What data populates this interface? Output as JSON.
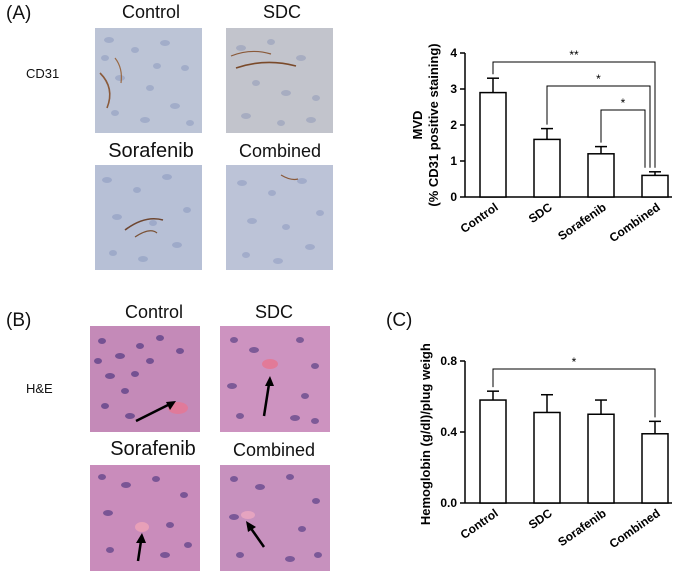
{
  "panels": {
    "a_letter": "(A)",
    "b_letter": "(B)",
    "c_letter": "(C)"
  },
  "a_images": {
    "stain": "CD31",
    "labels": [
      "Control",
      "SDC",
      "Sorafenib",
      "Combined"
    ]
  },
  "b_images": {
    "stain": "H&E",
    "labels": [
      "Control",
      "SDC",
      "Sorafenib",
      "Combined"
    ]
  },
  "colors": {
    "ihc_background": "#b9c2d6",
    "he_background": "#c889bd",
    "axis": "#000000",
    "bar_fill": "#ffffff"
  },
  "chart_data": [
    {
      "id": "chart-a",
      "type": "bar",
      "categories": [
        "Control",
        "SDC",
        "Sorafenib",
        "Combined"
      ],
      "values": [
        2.9,
        1.6,
        1.2,
        0.6
      ],
      "errors": [
        0.4,
        0.3,
        0.2,
        0.1
      ],
      "ylabel_line1": "MVD",
      "ylabel_line2": "(% CD31 positive staining)",
      "ylim": [
        0,
        4
      ],
      "yticks": [
        "0",
        "1",
        "2",
        "3",
        "4"
      ],
      "significance": [
        {
          "from": "Control",
          "to": "Combined",
          "label": "**"
        },
        {
          "from": "SDC",
          "to": "Combined",
          "label": "*"
        },
        {
          "from": "Sorafenib",
          "to": "Combined",
          "label": "*"
        }
      ]
    },
    {
      "id": "chart-c",
      "type": "bar",
      "categories": [
        "Control",
        "SDC",
        "Sorafenib",
        "Combined"
      ],
      "values": [
        0.58,
        0.51,
        0.5,
        0.39
      ],
      "errors": [
        0.05,
        0.1,
        0.08,
        0.07
      ],
      "ylabel_line1": "Hemoglobin (g/dl)/plug weight",
      "ylabel_line2": "",
      "ylim": [
        0,
        0.8
      ],
      "yticks": [
        "0.0",
        "0.4",
        "0.8"
      ],
      "significance": [
        {
          "from": "Control",
          "to": "Combined",
          "label": "*"
        }
      ]
    }
  ]
}
